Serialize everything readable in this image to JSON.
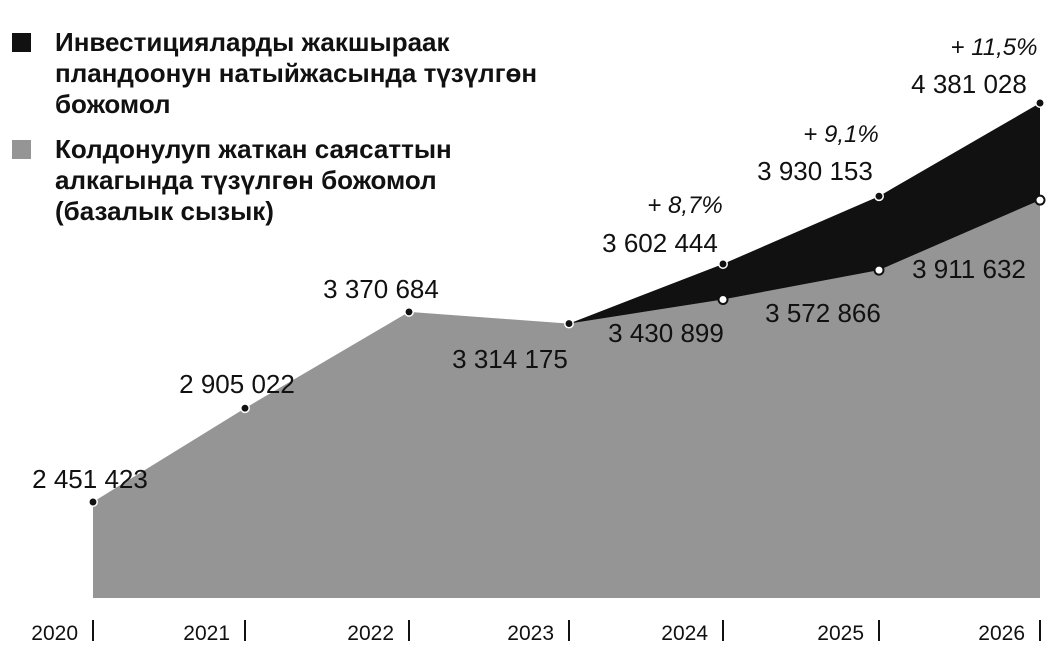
{
  "chart_data": {
    "type": "area",
    "x": [
      "2020",
      "2021",
      "2022",
      "2023",
      "2024",
      "2025",
      "2026"
    ],
    "series": [
      {
        "name": "Колдонулуп жаткан саясаттын алкагында түзүлгөн божомол (базалык сызык)",
        "values": [
          2451423,
          2905022,
          3370684,
          3314175,
          3430899,
          3572866,
          3911632
        ],
        "labels": [
          "2 451 423",
          "2 905 022",
          "3 370 684",
          "3 314 175",
          "3 430 899",
          "3 572 866",
          "3 911 632"
        ]
      },
      {
        "name": "Инвестицияларды жакшыраак пландоонун натыйжасында түзүлгөн божомол",
        "values": [
          null,
          null,
          null,
          3314175,
          3602444,
          3930153,
          4381028
        ],
        "labels": [
          "",
          "",
          "",
          "",
          "3 602 444",
          "3 930 153",
          "4 381 028"
        ]
      }
    ],
    "growth_labels": [
      "",
      "",
      "",
      "",
      "+ 8,7%",
      "+ 9,1%",
      "+ 11,5%"
    ],
    "ylim": [
      1900000,
      4600000
    ],
    "grid": false,
    "legend_position": "top-left",
    "colors": {
      "baseline": "#959595",
      "investment": "#111111"
    }
  },
  "legend": {
    "investment_label": "Инвестицияларды жакшыраак\nпландоонун натыйжасында түзүлгөн\nбожомол",
    "baseline_label": "Колдонулуп жаткан саясаттын\nалкагында түзүлгөн божомол\n(базалык сызык)"
  }
}
